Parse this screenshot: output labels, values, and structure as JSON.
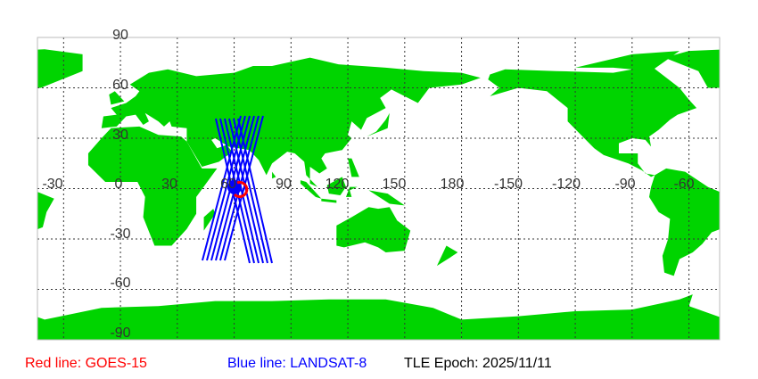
{
  "map": {
    "lon_labels": [
      "-30",
      "0",
      "30",
      "60",
      "90",
      "120",
      "150",
      "180",
      "-150",
      "-120",
      "-90",
      "-60"
    ],
    "lat_labels": [
      "90",
      "60",
      "30",
      "-30",
      "-60",
      "-90"
    ],
    "colors": {
      "land": "#00d400",
      "ocean": "#ffffff",
      "goes_track": "#ff0000",
      "landsat_track": "#0000ff",
      "grid": "#333333"
    }
  },
  "legend": {
    "red": "Red line: GOES-15",
    "blue": "Blue line: LANDSAT-8",
    "epoch": "TLE Epoch: 2025/11/11"
  }
}
